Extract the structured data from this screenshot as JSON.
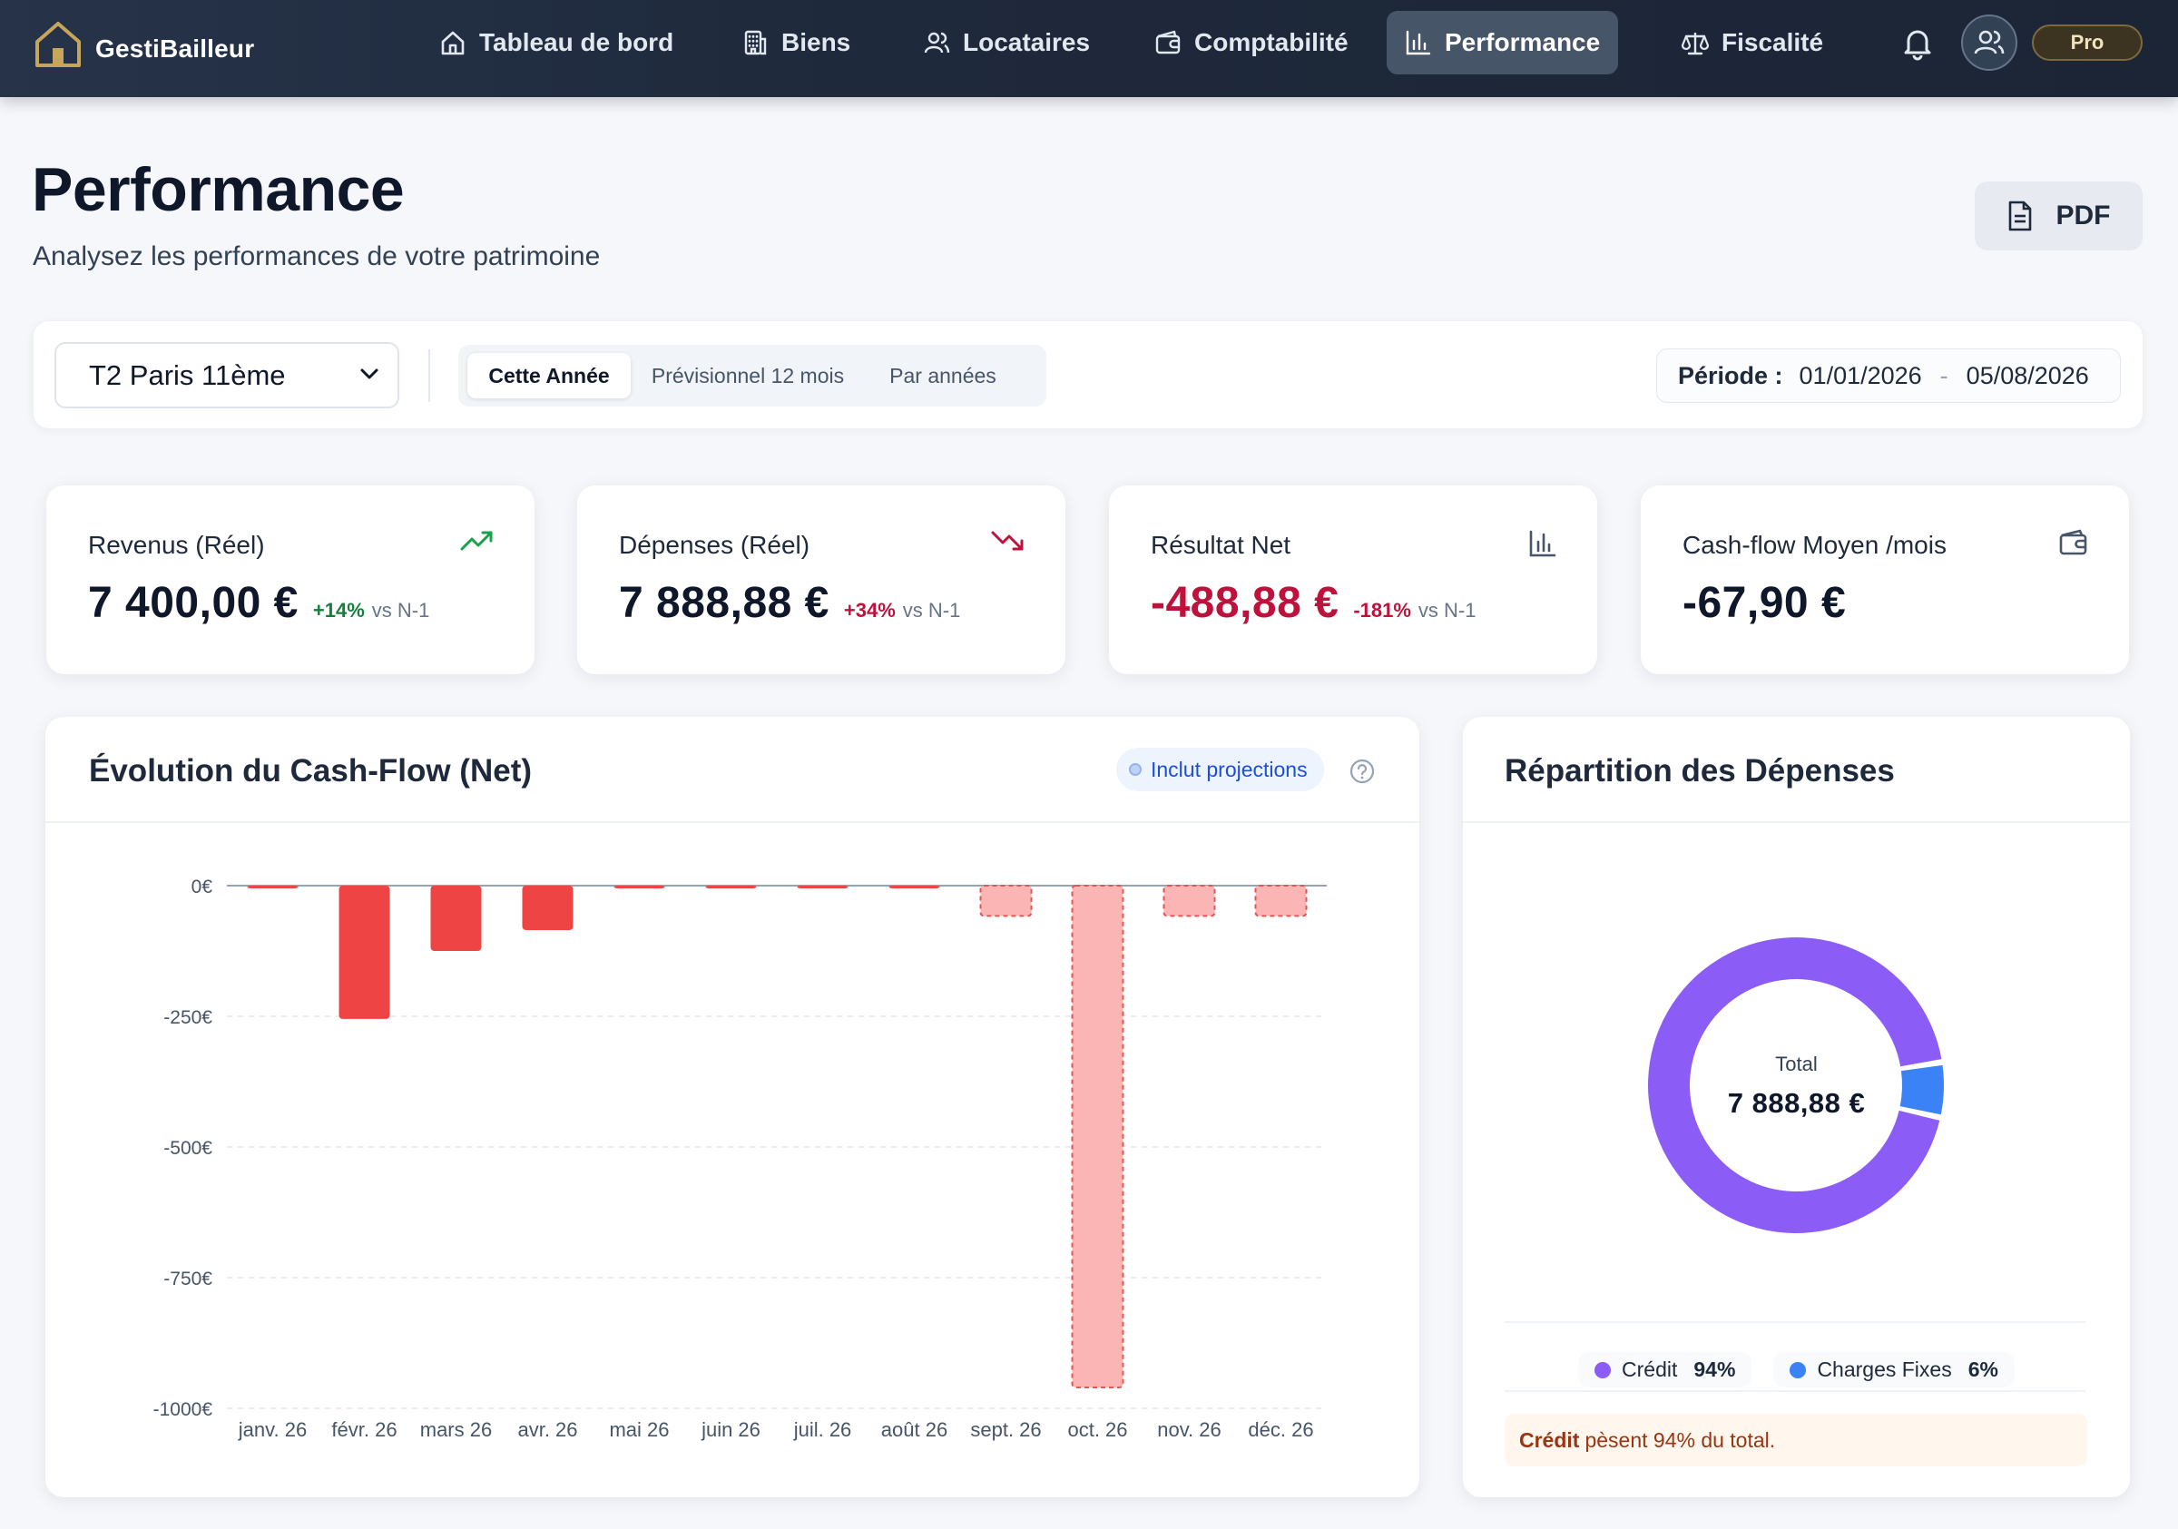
{
  "app": {
    "name": "GestiBailleur",
    "plan_badge": "Pro"
  },
  "nav": [
    {
      "label": "Tableau de bord",
      "icon": "home-icon",
      "active": false
    },
    {
      "label": "Biens",
      "icon": "building-icon",
      "active": false
    },
    {
      "label": "Locataires",
      "icon": "users-icon",
      "active": false
    },
    {
      "label": "Comptabilité",
      "icon": "wallet-icon",
      "active": false
    },
    {
      "label": "Performance",
      "icon": "bar-chart-icon",
      "active": true
    },
    {
      "label": "Fiscalité",
      "icon": "scale-icon",
      "active": false
    }
  ],
  "header": {
    "title": "Performance",
    "subtitle": "Analysez les performances de votre patrimoine",
    "pdf_label": "PDF"
  },
  "filters": {
    "property": "T2 Paris 11ème",
    "tabs": [
      "Cette Année",
      "Prévisionnel 12 mois",
      "Par années"
    ],
    "active_tab": 0,
    "period_label": "Période :",
    "period_start": "01/01/2026",
    "period_separator": "-",
    "period_end": "05/08/2026"
  },
  "kpis": [
    {
      "label": "Revenus (Réel)",
      "value": "7 400,00 €",
      "delta": "+14%",
      "vs": "vs N-1",
      "trend": "up",
      "icon": "trending-up-icon"
    },
    {
      "label": "Dépenses (Réel)",
      "value": "7 888,88 €",
      "delta": "+34%",
      "vs": "vs N-1",
      "trend": "down",
      "icon": "trending-down-icon"
    },
    {
      "label": "Résultat Net",
      "value": "-488,88 €",
      "delta": "-181%",
      "vs": "vs N-1",
      "trend": "down",
      "icon": "bar-chart-icon"
    },
    {
      "label": "Cash-flow Moyen /mois",
      "value": "-67,90 €",
      "delta": "",
      "vs": "",
      "trend": "none",
      "icon": "wallet-icon"
    }
  ],
  "cashflow_card": {
    "title": "Évolution du Cash-Flow (Net)",
    "badge": "Inclut projections"
  },
  "expenses_card": {
    "title": "Répartition des Dépenses",
    "center_label": "Total",
    "center_value": "7 888,88 €",
    "insight_strong": "Crédit",
    "insight_text": "pèsent 94% du total."
  },
  "chart_data": [
    {
      "type": "bar",
      "title": "Évolution du Cash-Flow (Net)",
      "categories": [
        "janv. 26",
        "févr. 26",
        "mars 26",
        "avr. 26",
        "mai 26",
        "juin 26",
        "juil. 26",
        "août 26",
        "sept. 26",
        "oct. 26",
        "nov. 26",
        "déc. 26"
      ],
      "values": [
        -5,
        -255,
        -125,
        -85,
        -3,
        -3,
        -3,
        -3,
        -58,
        -960,
        -58,
        -58
      ],
      "projected": [
        false,
        false,
        false,
        false,
        false,
        false,
        false,
        false,
        true,
        true,
        true,
        true
      ],
      "yticks": [
        0,
        -250,
        -500,
        -750,
        -1000
      ],
      "ytick_labels": [
        "0€",
        "-250€",
        "-500€",
        "-750€",
        "-1000€"
      ],
      "ylim": [
        -1000,
        0
      ],
      "grid": true,
      "colors": {
        "actual": "#ef4444",
        "projected_fill": "#fcb5b5",
        "projected_stroke": "#e35656"
      }
    },
    {
      "type": "pie",
      "title": "Répartition des Dépenses",
      "labels": [
        "Crédit",
        "Charges Fixes"
      ],
      "values": [
        94,
        6
      ],
      "display": [
        "94%",
        "6%"
      ],
      "colors": [
        "#8b5cf6",
        "#3b82f6"
      ]
    }
  ]
}
